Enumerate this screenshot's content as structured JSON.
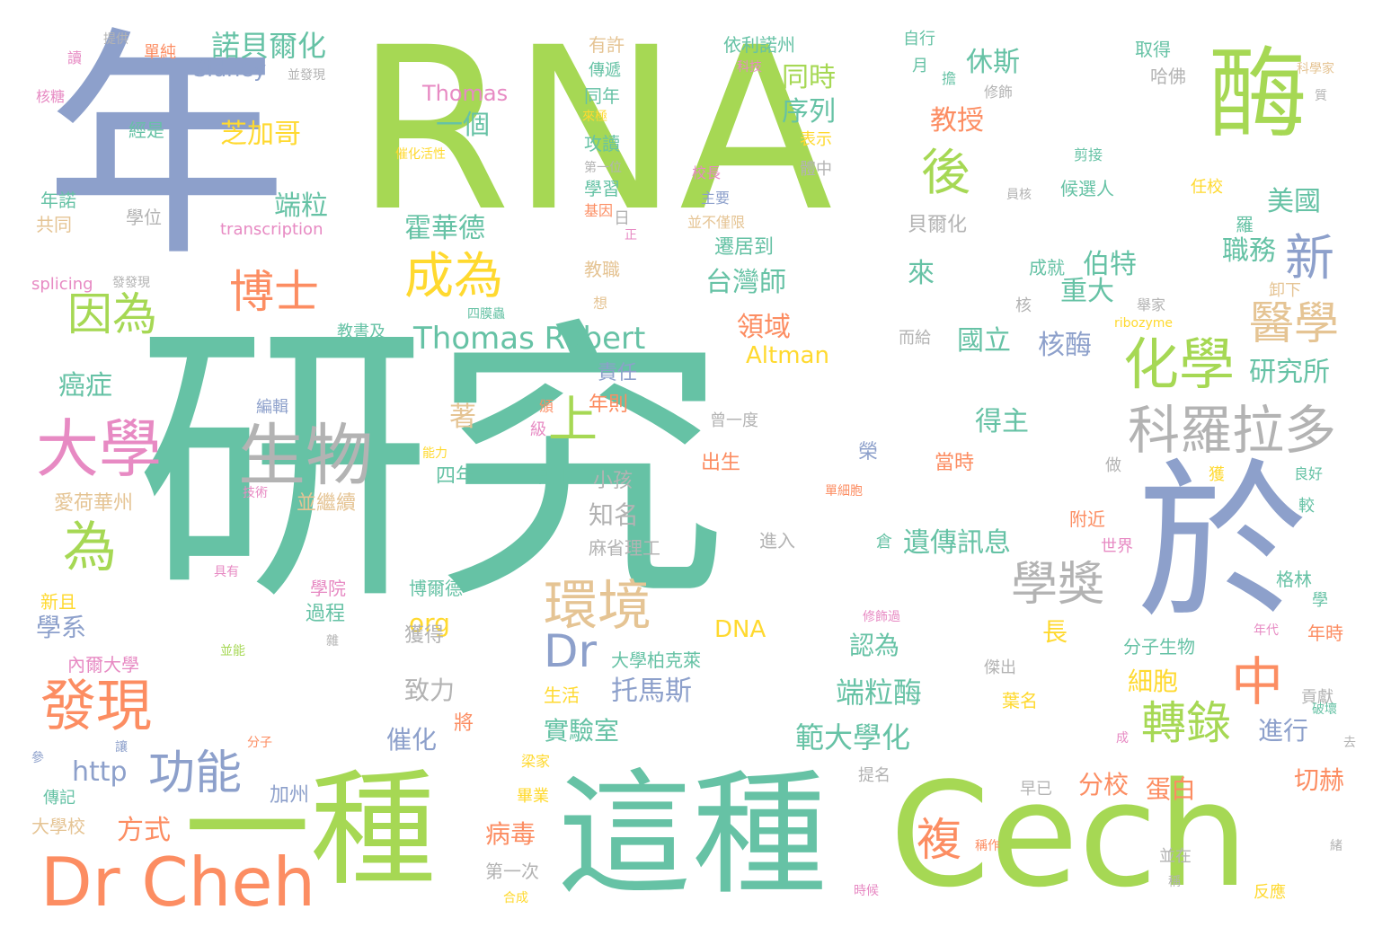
{
  "colors": {
    "green": "#a6d854",
    "teal": "#66c2a5",
    "blue": "#8da0cb",
    "orange": "#fc8d62",
    "pink": "#e78ac3",
    "yellow": "#ffd92f",
    "tan": "#e5c494",
    "grey": "#b3b3b3"
  },
  "words": [
    {
      "t": "研究",
      "c": "teal"
    },
    {
      "t": "RNA",
      "c": "green"
    },
    {
      "t": "年",
      "c": "blue"
    },
    {
      "t": "Cech",
      "c": "green"
    },
    {
      "t": "這種",
      "c": "teal"
    },
    {
      "t": "一種",
      "c": "green"
    },
    {
      "t": "於",
      "c": "blue"
    },
    {
      "t": "酶",
      "c": "green"
    },
    {
      "t": "Dr Cheh",
      "c": "orange"
    },
    {
      "t": "生物",
      "c": "grey"
    },
    {
      "t": "大學",
      "c": "pink"
    },
    {
      "t": "科羅拉多",
      "c": "grey"
    },
    {
      "t": "化學",
      "c": "green"
    },
    {
      "t": "醫學",
      "c": "tan"
    },
    {
      "t": "環境",
      "c": "tan"
    },
    {
      "t": "學獎",
      "c": "grey"
    },
    {
      "t": "發現",
      "c": "orange"
    },
    {
      "t": "中",
      "c": "orange"
    },
    {
      "t": "功能",
      "c": "blue"
    },
    {
      "t": "轉錄",
      "c": "green"
    },
    {
      "t": "新",
      "c": "blue"
    },
    {
      "t": "後",
      "c": "green"
    },
    {
      "t": "成為",
      "c": "yellow"
    },
    {
      "t": "博士",
      "c": "orange"
    },
    {
      "t": "因為",
      "c": "green"
    },
    {
      "t": "為",
      "c": "green"
    },
    {
      "t": "上",
      "c": "green"
    },
    {
      "t": "Dr",
      "c": "blue"
    },
    {
      "t": "複",
      "c": "orange"
    },
    {
      "t": "Thomas Robert",
      "c": "teal"
    },
    {
      "t": "諾貝爾化",
      "c": "teal"
    },
    {
      "t": "端粒酶",
      "c": "teal"
    },
    {
      "t": "範大學化",
      "c": "teal"
    },
    {
      "t": "托馬斯",
      "c": "blue"
    },
    {
      "t": "遺傳訊息",
      "c": "teal"
    },
    {
      "t": "伯特",
      "c": "teal"
    },
    {
      "t": "重大",
      "c": "teal"
    },
    {
      "t": "霍華德",
      "c": "teal"
    },
    {
      "t": "休斯",
      "c": "teal"
    },
    {
      "t": "同時",
      "c": "green"
    },
    {
      "t": "教授",
      "c": "orange"
    },
    {
      "t": "端粒",
      "c": "teal"
    },
    {
      "t": "芝加哥",
      "c": "yellow"
    },
    {
      "t": "一個",
      "c": "teal"
    },
    {
      "t": "序列",
      "c": "teal"
    },
    {
      "t": "美國",
      "c": "teal"
    },
    {
      "t": "職務",
      "c": "teal"
    },
    {
      "t": "研究所",
      "c": "teal"
    },
    {
      "t": "核酶",
      "c": "blue"
    },
    {
      "t": "國立",
      "c": "teal"
    },
    {
      "t": "領域",
      "c": "orange"
    },
    {
      "t": "台灣師",
      "c": "teal"
    },
    {
      "t": "來",
      "c": "teal"
    },
    {
      "t": "得主",
      "c": "teal"
    },
    {
      "t": "著",
      "c": "tan"
    },
    {
      "t": "癌症",
      "c": "teal"
    },
    {
      "t": "學系",
      "c": "blue"
    },
    {
      "t": "http",
      "c": "blue"
    },
    {
      "t": "方式",
      "c": "orange"
    },
    {
      "t": "病毒",
      "c": "orange"
    },
    {
      "t": "分校",
      "c": "orange"
    },
    {
      "t": "蛋白",
      "c": "orange"
    },
    {
      "t": "切赫",
      "c": "orange"
    },
    {
      "t": "細胞",
      "c": "yellow"
    },
    {
      "t": "進行",
      "c": "blue"
    },
    {
      "t": "認為",
      "c": "teal"
    },
    {
      "t": "長",
      "c": "yellow"
    },
    {
      "t": "實驗室",
      "c": "teal"
    },
    {
      "t": "催化",
      "c": "blue"
    },
    {
      "t": "致力",
      "c": "grey"
    },
    {
      "t": "知名",
      "c": "grey"
    },
    {
      "t": "org",
      "c": "yellow"
    },
    {
      "t": "DNA",
      "c": "yellow"
    },
    {
      "t": "Altman",
      "c": "yellow"
    },
    {
      "t": "Thomas",
      "c": "pink"
    },
    {
      "t": "Sidney",
      "c": "blue"
    },
    {
      "t": "transcription",
      "c": "pink"
    },
    {
      "t": "splicing",
      "c": "pink"
    },
    {
      "t": "ribozyme",
      "c": "yellow"
    },
    {
      "t": "愛荷華州",
      "c": "tan"
    },
    {
      "t": "內爾大學",
      "c": "pink"
    },
    {
      "t": "大學柏克萊",
      "c": "teal"
    },
    {
      "t": "分子生物",
      "c": "teal"
    },
    {
      "t": "麻省理工",
      "c": "grey"
    },
    {
      "t": "葉名",
      "c": "yellow"
    },
    {
      "t": "依利諾州",
      "c": "teal"
    },
    {
      "t": "候選人",
      "c": "teal"
    },
    {
      "t": "加州",
      "c": "blue"
    },
    {
      "t": "並繼續",
      "c": "tan"
    },
    {
      "t": "四年",
      "c": "teal"
    },
    {
      "t": "中部",
      "c": "teal"
    },
    {
      "t": "小孩",
      "c": "grey"
    },
    {
      "t": "年則",
      "c": "orange"
    },
    {
      "t": "責任",
      "c": "blue"
    },
    {
      "t": "遷居到",
      "c": "teal"
    },
    {
      "t": "貝爾化",
      "c": "grey"
    },
    {
      "t": "成就",
      "c": "teal"
    },
    {
      "t": "卸下",
      "c": "tan"
    },
    {
      "t": "世界",
      "c": "pink"
    },
    {
      "t": "附近",
      "c": "orange"
    },
    {
      "t": "格林",
      "c": "teal"
    },
    {
      "t": "年時",
      "c": "orange"
    },
    {
      "t": "貢獻",
      "c": "grey"
    },
    {
      "t": "出生",
      "c": "orange"
    },
    {
      "t": "當時",
      "c": "orange"
    },
    {
      "t": "進入",
      "c": "grey"
    },
    {
      "t": "倉",
      "c": "teal"
    },
    {
      "t": "榮",
      "c": "blue"
    },
    {
      "t": "博爾德",
      "c": "teal"
    },
    {
      "t": "學院",
      "c": "pink"
    },
    {
      "t": "過程",
      "c": "teal"
    },
    {
      "t": "獲得",
      "c": "grey"
    },
    {
      "t": "將",
      "c": "orange"
    },
    {
      "t": "生活",
      "c": "yellow"
    },
    {
      "t": "畢業",
      "c": "yellow"
    },
    {
      "t": "梁家",
      "c": "yellow"
    },
    {
      "t": "第一次",
      "c": "grey"
    },
    {
      "t": "合成",
      "c": "yellow"
    },
    {
      "t": "大學校",
      "c": "tan"
    },
    {
      "t": "傳記",
      "c": "teal"
    },
    {
      "t": "新且",
      "c": "yellow"
    },
    {
      "t": "年諾",
      "c": "teal"
    },
    {
      "t": "共同",
      "c": "tan"
    },
    {
      "t": "學位",
      "c": "grey"
    },
    {
      "t": "經是",
      "c": "teal"
    },
    {
      "t": "核糖",
      "c": "pink"
    },
    {
      "t": "讀",
      "c": "pink"
    },
    {
      "t": "提供",
      "c": "grey"
    },
    {
      "t": "單純",
      "c": "orange"
    },
    {
      "t": "並發現",
      "c": "grey"
    },
    {
      "t": "有許",
      "c": "tan"
    },
    {
      "t": "傳遞",
      "c": "teal"
    },
    {
      "t": "同年",
      "c": "teal"
    },
    {
      "t": "攻讀",
      "c": "teal"
    },
    {
      "t": "學習",
      "c": "teal"
    },
    {
      "t": "基因",
      "c": "orange"
    },
    {
      "t": "教職",
      "c": "tan"
    },
    {
      "t": "四膜蟲",
      "c": "teal"
    },
    {
      "t": "教書及",
      "c": "teal"
    },
    {
      "t": "表示",
      "c": "yellow"
    },
    {
      "t": "體中",
      "c": "grey"
    },
    {
      "t": "校長",
      "c": "pink"
    },
    {
      "t": "主要",
      "c": "blue"
    },
    {
      "t": "並不僅限",
      "c": "tan"
    },
    {
      "t": "自行",
      "c": "teal"
    },
    {
      "t": "月",
      "c": "teal"
    },
    {
      "t": "擔",
      "c": "teal"
    },
    {
      "t": "修飾",
      "c": "grey"
    },
    {
      "t": "取得",
      "c": "teal"
    },
    {
      "t": "哈佛",
      "c": "grey"
    },
    {
      "t": "剪接",
      "c": "teal"
    },
    {
      "t": "任校",
      "c": "yellow"
    },
    {
      "t": "羅",
      "c": "teal"
    },
    {
      "t": "核",
      "c": "grey"
    },
    {
      "t": "舉家",
      "c": "grey"
    },
    {
      "t": "而給",
      "c": "grey"
    },
    {
      "t": "曾一度",
      "c": "grey"
    },
    {
      "t": "編輯",
      "c": "blue"
    },
    {
      "t": "頒",
      "c": "orange"
    },
    {
      "t": "級",
      "c": "pink"
    },
    {
      "t": "能力",
      "c": "yellow"
    },
    {
      "t": "技術",
      "c": "pink"
    },
    {
      "t": "單細胞",
      "c": "orange"
    },
    {
      "t": "做",
      "c": "grey"
    },
    {
      "t": "良好",
      "c": "teal"
    },
    {
      "t": "較",
      "c": "teal"
    },
    {
      "t": "獲",
      "c": "yellow"
    },
    {
      "t": "學",
      "c": "teal"
    },
    {
      "t": "年代",
      "c": "pink"
    },
    {
      "t": "破壞",
      "c": "teal"
    },
    {
      "t": "去",
      "c": "grey"
    },
    {
      "t": "成",
      "c": "pink"
    },
    {
      "t": "早已",
      "c": "grey"
    },
    {
      "t": "提名",
      "c": "grey"
    },
    {
      "t": "並在",
      "c": "grey"
    },
    {
      "t": "稱作",
      "c": "orange"
    },
    {
      "t": "反應",
      "c": "yellow"
    },
    {
      "t": "稱",
      "c": "grey"
    },
    {
      "t": "時候",
      "c": "pink"
    },
    {
      "t": "傑出",
      "c": "grey"
    },
    {
      "t": "修飾過",
      "c": "pink"
    },
    {
      "t": "雜",
      "c": "grey"
    },
    {
      "t": "並能",
      "c": "green"
    },
    {
      "t": "分子",
      "c": "orange"
    },
    {
      "t": "讓",
      "c": "blue"
    },
    {
      "t": "參",
      "c": "blue"
    },
    {
      "t": "具有",
      "c": "pink"
    },
    {
      "t": "發發現",
      "c": "grey"
    },
    {
      "t": "催化活性",
      "c": "yellow"
    },
    {
      "t": "第一位",
      "c": "grey"
    },
    {
      "t": "正",
      "c": "pink"
    },
    {
      "t": "日",
      "c": "grey"
    },
    {
      "t": "想",
      "c": "tan"
    },
    {
      "t": "來極",
      "c": "yellow"
    },
    {
      "t": "科技",
      "c": "pink"
    },
    {
      "t": "員核",
      "c": "grey"
    },
    {
      "t": "科學家",
      "c": "tan"
    },
    {
      "t": "質",
      "c": "grey"
    },
    {
      "t": "緒",
      "c": "grey"
    }
  ]
}
